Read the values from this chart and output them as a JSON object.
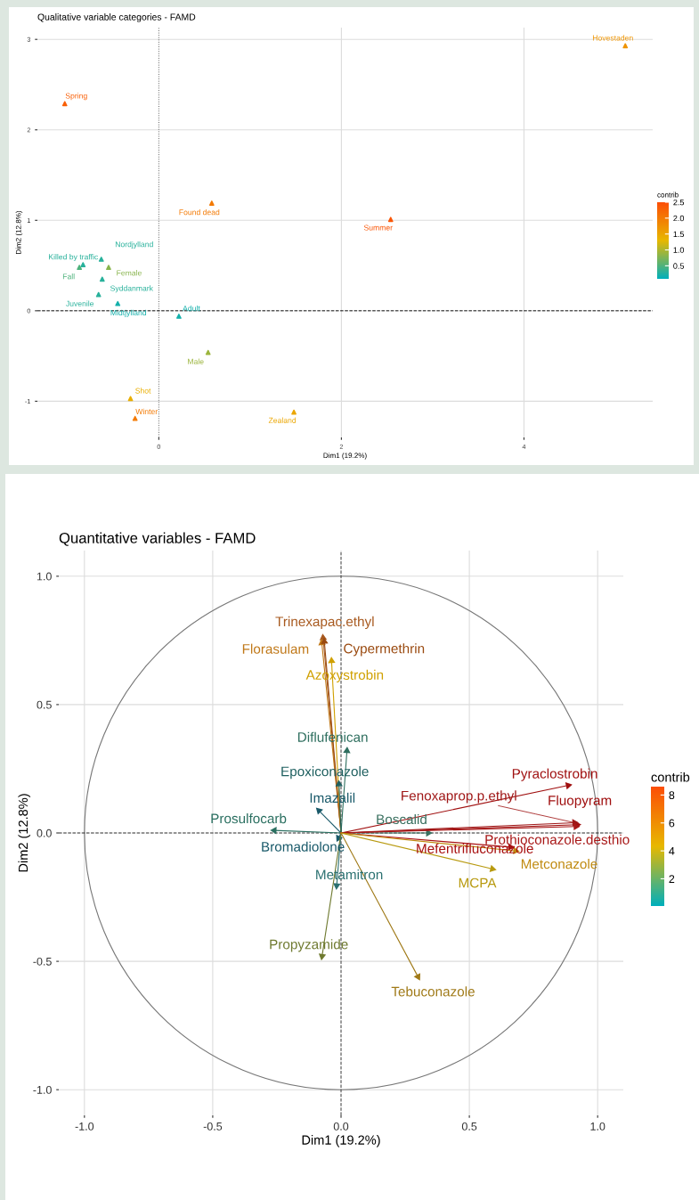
{
  "chart_data": [
    {
      "type": "scatter",
      "title": "Qualitative variable categories - FAMD",
      "xlabel": "Dim1 (19.2%)",
      "ylabel": "Dim2 (12.8%)",
      "clabel": "contrib",
      "x": [
        -1.03,
        0.58,
        -0.63,
        -0.83,
        -0.87,
        -0.55,
        -0.62,
        -0.66,
        -0.45,
        0.22,
        0.54,
        -0.31,
        -0.26,
        1.48,
        2.54,
        5.11
      ],
      "values": [
        2.29,
        1.19,
        0.57,
        0.51,
        0.48,
        0.48,
        0.35,
        0.18,
        0.08,
        -0.06,
        -0.46,
        -0.97,
        -1.19,
        -1.12,
        1.01,
        2.93
      ],
      "cvalues": [
        2.3,
        2.0,
        0.3,
        0.3,
        0.5,
        0.8,
        0.3,
        0.3,
        0.2,
        0.2,
        0.9,
        1.4,
        2.0,
        1.5,
        2.4,
        1.7
      ],
      "legend": false,
      "annotations": [
        {
          "text": "Spring",
          "x": -1.03,
          "y": 2.29
        },
        {
          "text": "Found dead",
          "x": 0.58,
          "y": 1.19
        },
        {
          "text": "Nordjylland",
          "x": -0.63,
          "y": 0.57
        },
        {
          "text": "Killed by traffic",
          "x": -0.83,
          "y": 0.51
        },
        {
          "text": "Fall",
          "x": -0.87,
          "y": 0.48
        },
        {
          "text": "Female",
          "x": -0.55,
          "y": 0.48
        },
        {
          "text": "Syddanmark",
          "x": -0.62,
          "y": 0.35
        },
        {
          "text": "Juvenile",
          "x": -0.66,
          "y": 0.18
        },
        {
          "text": "Midtjylland",
          "x": -0.45,
          "y": 0.08
        },
        {
          "text": "Adult",
          "x": 0.22,
          "y": -0.06
        },
        {
          "text": "Male",
          "x": 0.54,
          "y": -0.46
        },
        {
          "text": "Shot",
          "x": -0.31,
          "y": -0.97
        },
        {
          "text": "Winter",
          "x": -0.26,
          "y": -1.19
        },
        {
          "text": "Zealand",
          "x": 1.48,
          "y": -1.12
        },
        {
          "text": "Summer",
          "x": 2.54,
          "y": 1.01
        },
        {
          "text": "Hovestaden",
          "x": 5.11,
          "y": 2.93
        }
      ],
      "marker": "triangle",
      "clim": [
        0.09,
        2.5
      ],
      "cticks": [
        0.5,
        {
          "value": 1,
          "label": "1.0"
        },
        1.5,
        {
          "value": 2,
          "label": "2.0"
        },
        2.5
      ],
      "xlim": [
        -1.33,
        5.41
      ],
      "ylim": [
        -1.4,
        3.13
      ],
      "xticks": [
        0,
        2,
        4
      ],
      "yticks": [
        -1,
        0,
        1,
        2,
        3
      ],
      "ref_lines": [
        {
          "axis": "x",
          "value": 0,
          "line_style": "dotted",
          "color": "#555555"
        },
        {
          "axis": "y",
          "value": 0,
          "line_style": "dashed",
          "color": "#000000"
        }
      ],
      "grid": true
    },
    {
      "type": "line",
      "title": "Quantitative variables - FAMD",
      "xlabel": "Dim1 (19.2%)",
      "ylabel": "Dim2 (12.8%)",
      "clabel": "contrib",
      "series": [
        {
          "name": "Trinexapac.ethyl",
          "color": "#a85a20",
          "x": [
            0,
            -0.07
          ],
          "values": [
            0,
            0.76
          ]
        },
        {
          "name": "Florasulam",
          "color": "#c07818",
          "x": [
            0,
            -0.075
          ],
          "values": [
            0,
            0.74
          ]
        },
        {
          "name": "Cypermethrin",
          "color": "#9a4a10",
          "x": [
            0,
            -0.065
          ],
          "values": [
            0,
            0.745
          ]
        },
        {
          "name": "Azoxystrobin",
          "color": "#d0a000",
          "x": [
            0,
            -0.037
          ],
          "values": [
            0,
            0.67
          ]
        },
        {
          "name": "Diflufenican",
          "color": "#2f6f5f",
          "x": [
            0,
            0.023
          ],
          "values": [
            0,
            0.32
          ]
        },
        {
          "name": "Epoxiconazole",
          "color": "#1f6060",
          "x": [
            0,
            -0.008
          ],
          "values": [
            0,
            0.19
          ]
        },
        {
          "name": "Imazalil",
          "color": "#1a5a6a",
          "x": [
            0,
            -0.086
          ],
          "values": [
            0,
            0.087
          ]
        },
        {
          "name": "Prosulfocarb",
          "color": "#2a6f60",
          "x": [
            0,
            -0.26
          ],
          "values": [
            0,
            0.01
          ]
        },
        {
          "name": "Boscalid",
          "color": "#3a7060",
          "x": [
            0,
            0.34
          ],
          "values": [
            0,
            0.0
          ]
        },
        {
          "name": "Bromadiolone",
          "color": "#1a5a6a",
          "x": [
            0,
            -0.01
          ],
          "values": [
            0,
            -0.02
          ]
        },
        {
          "name": "Metamitron",
          "color": "#2a7070",
          "x": [
            0,
            -0.017
          ],
          "values": [
            0,
            -0.205
          ]
        },
        {
          "name": "Propyzamide",
          "color": "#6f7a30",
          "x": [
            0,
            -0.074
          ],
          "values": [
            0,
            -0.48
          ]
        },
        {
          "name": "Tebuconazole",
          "color": "#a07a18",
          "x": [
            0,
            0.3
          ],
          "values": [
            0,
            -0.56
          ]
        },
        {
          "name": "Pyraclostrobin",
          "color": "#a01010",
          "x": [
            0,
            0.885
          ],
          "values": [
            0,
            0.185
          ]
        },
        {
          "name": "Fluopyram",
          "color": "#a01010",
          "x": [
            0,
            0.92
          ],
          "values": [
            0,
            0.032
          ]
        },
        {
          "name": "Fenoxaprop.p.ethyl",
          "color": "#a01818",
          "x": [
            0,
            0.91
          ],
          "values": [
            0,
            0.04
          ]
        },
        {
          "name": "Prothioconazole.desthio",
          "color": "#a81818",
          "x": [
            0,
            0.915
          ],
          "values": [
            0,
            0.025
          ]
        },
        {
          "name": "Mefentrifluconazole",
          "color": "#a81010",
          "x": [
            0,
            0.66
          ],
          "values": [
            0,
            -0.055
          ]
        },
        {
          "name": "Metconazole",
          "color": "#c08a10",
          "x": [
            0,
            0.68
          ],
          "values": [
            0,
            -0.07
          ]
        },
        {
          "name": "MCPA",
          "color": "#b89a10",
          "x": [
            0,
            0.59
          ],
          "values": [
            0,
            -0.14
          ]
        }
      ],
      "clim": [
        0.05,
        8.6
      ],
      "cticks": [
        2,
        4,
        6,
        8
      ],
      "xlim": [
        -1.1,
        1.1
      ],
      "ylim": [
        -1.1,
        1.1
      ],
      "xticks": [
        {
          "value": -1,
          "label": "-1.0"
        },
        -0.5,
        {
          "value": 0,
          "label": "0.0"
        },
        0.5,
        {
          "value": 1,
          "label": "1.0"
        }
      ],
      "yticks": [
        {
          "value": -1,
          "label": "-1.0"
        },
        -0.5,
        {
          "value": 0,
          "label": "0.0"
        },
        0.5,
        {
          "value": 1,
          "label": "1.0"
        }
      ],
      "ref_lines": [
        {
          "axis": "x",
          "value": 0,
          "line_style": "dashed",
          "color": "#333333"
        },
        {
          "axis": "y",
          "value": 0,
          "line_style": "dashed",
          "color": "#222222"
        }
      ],
      "grid": true,
      "legend": false
    }
  ]
}
